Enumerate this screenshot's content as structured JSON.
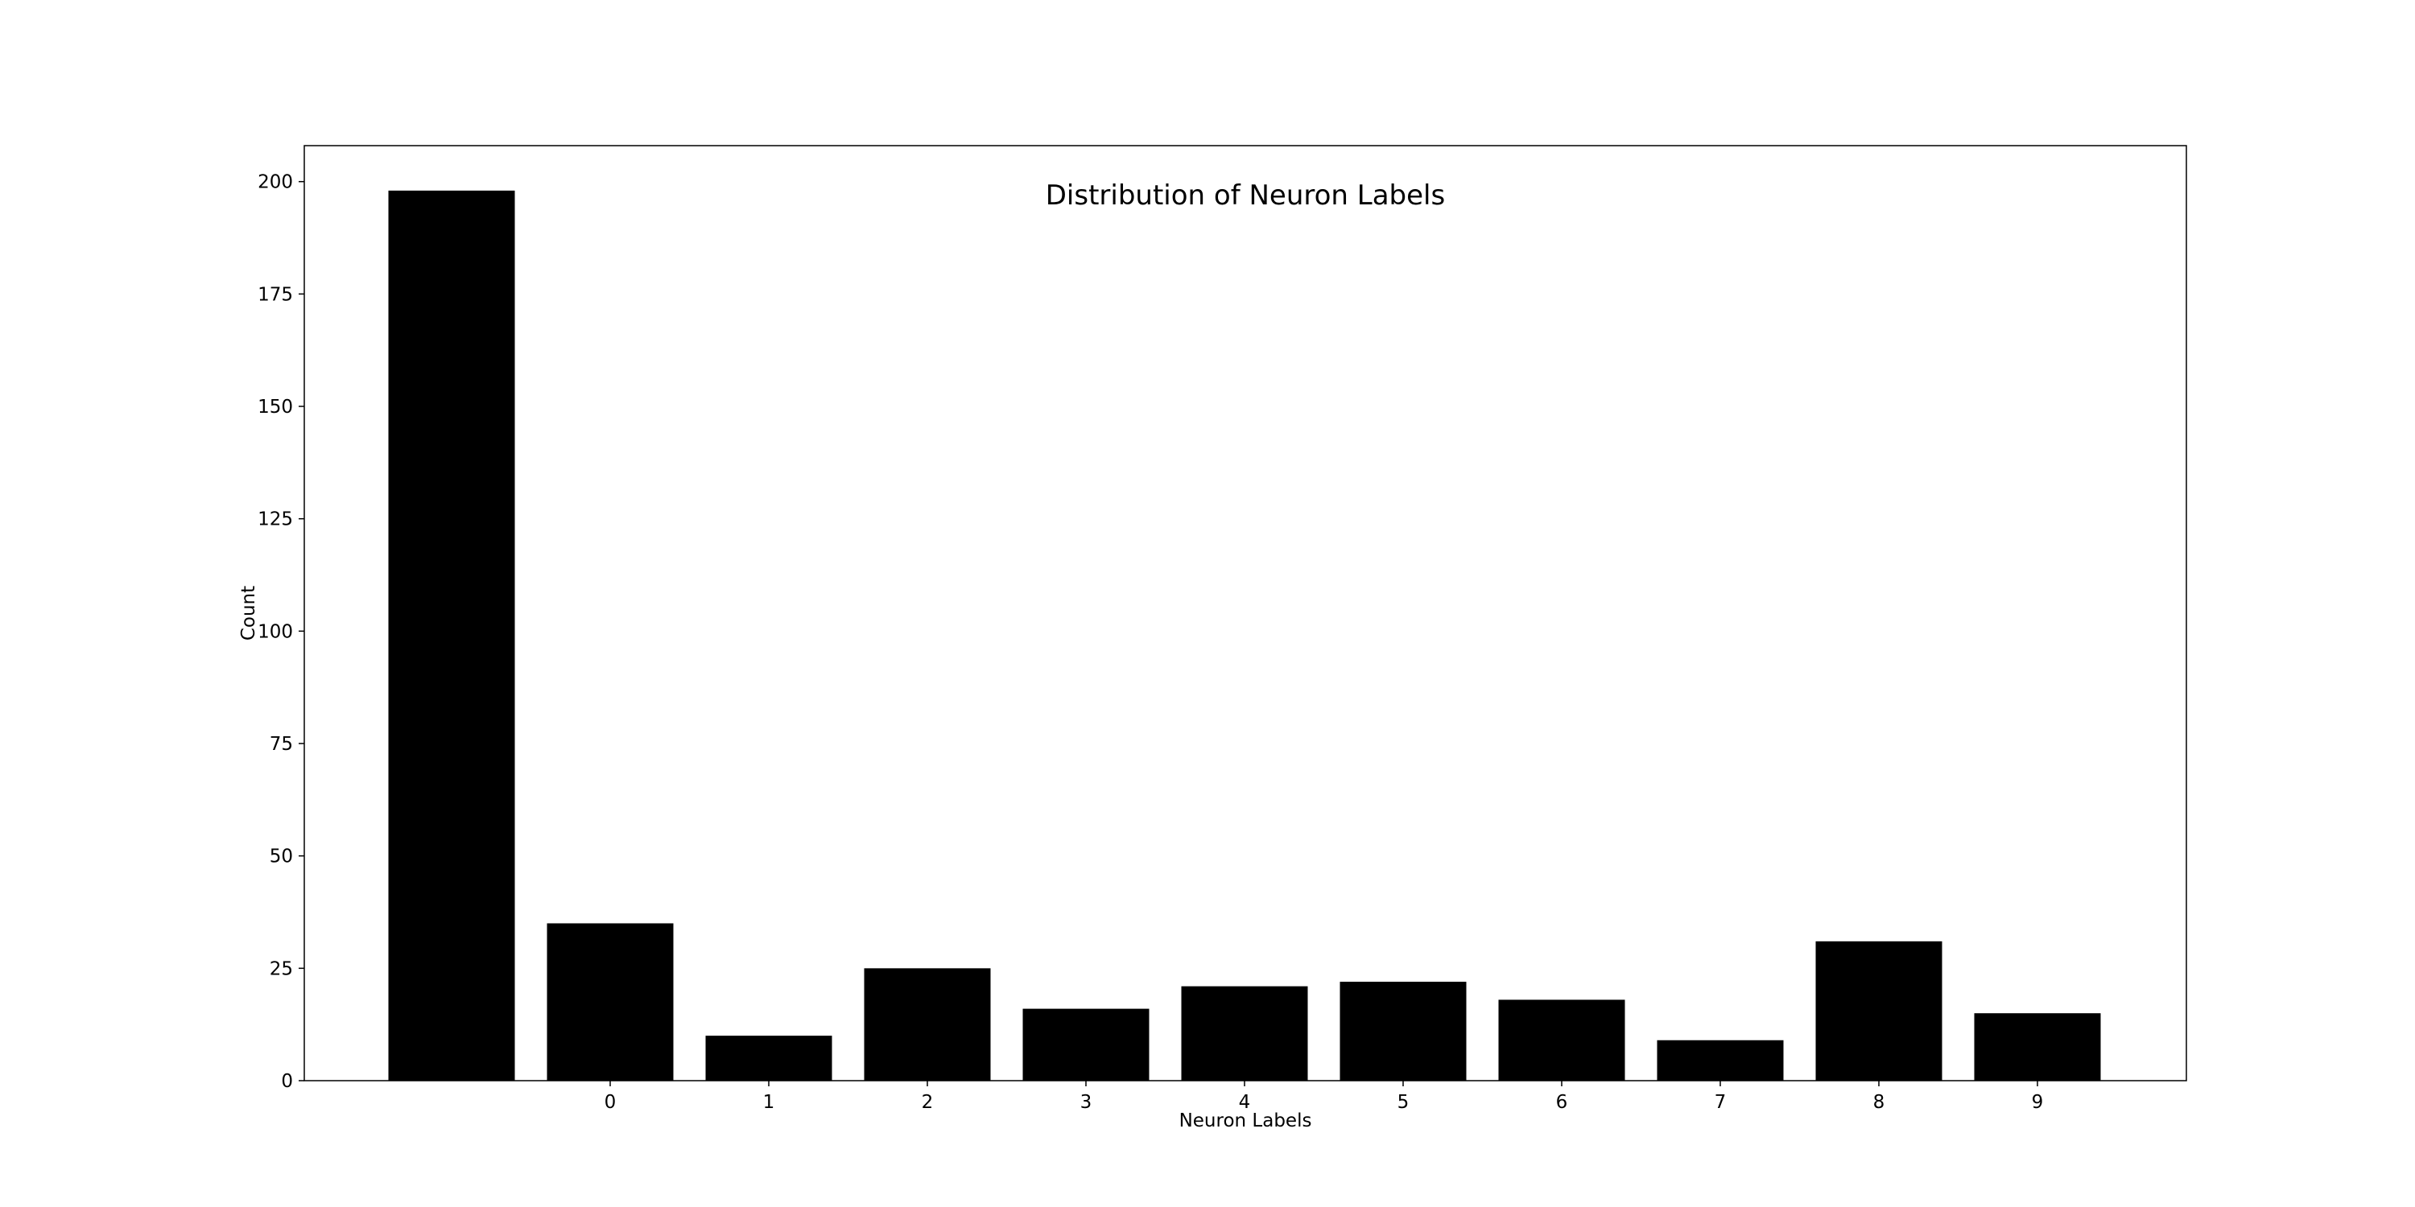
{
  "chart_data": {
    "type": "bar",
    "title": "Distribution of Neuron Labels",
    "xlabel": "Neuron Labels",
    "ylabel": "Count",
    "categories": [
      "",
      "0",
      "1",
      "2",
      "3",
      "4",
      "5",
      "6",
      "7",
      "8",
      "9"
    ],
    "values": [
      198,
      35,
      10,
      25,
      16,
      21,
      22,
      18,
      9,
      31,
      15
    ],
    "ylim": [
      0,
      208
    ],
    "yticks": [
      0,
      25,
      50,
      75,
      100,
      125,
      150,
      175,
      200
    ],
    "grid": false,
    "legend": "none",
    "bar_color": "#000000"
  }
}
